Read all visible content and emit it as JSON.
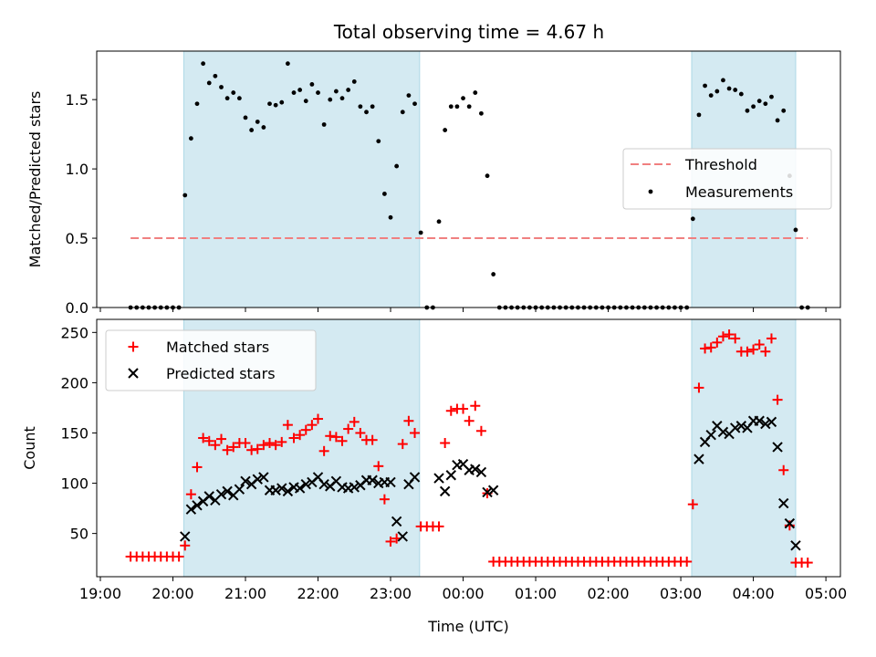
{
  "chart_data": {
    "title": "Total observing time = 4.67 h",
    "shared_x": {
      "label": "Time (UTC)",
      "ticks": [
        "19:00",
        "20:00",
        "21:00",
        "22:00",
        "23:00",
        "00:00",
        "01:00",
        "02:00",
        "03:00",
        "04:00",
        "05:00"
      ],
      "tick_hours": [
        19,
        20,
        21,
        22,
        23,
        24,
        25,
        26,
        27,
        28,
        29
      ],
      "xlim": [
        18.95,
        29.2
      ]
    },
    "shaded_spans": [
      {
        "start": "20:09",
        "end": "23:24"
      },
      {
        "start": "03:09",
        "end": "04:35"
      }
    ],
    "panels": [
      {
        "type": "scatter",
        "ylabel": "Matched/Predicted stars",
        "ylim": [
          0,
          1.85
        ],
        "yticks": [
          "0.0",
          "0.5",
          "1.0",
          "1.5"
        ],
        "ytick_values": [
          0,
          0.5,
          1.0,
          1.5
        ],
        "legend_position": "center-right",
        "threshold": {
          "name": "Threshold",
          "value": 0.5,
          "x_range": [
            "19:25",
            "04:45"
          ],
          "color": "#f08080"
        },
        "series": [
          {
            "name": "Measurements",
            "color": "#000000",
            "x": [
              "19:25",
              "19:30",
              "19:35",
              "19:40",
              "19:45",
              "19:50",
              "19:55",
              "20:00",
              "20:05",
              "20:10",
              "20:15",
              "20:20",
              "20:25",
              "20:30",
              "20:35",
              "20:40",
              "20:45",
              "20:50",
              "20:55",
              "21:00",
              "21:05",
              "21:10",
              "21:15",
              "21:20",
              "21:25",
              "21:30",
              "21:35",
              "21:40",
              "21:45",
              "21:50",
              "21:55",
              "22:00",
              "22:05",
              "22:10",
              "22:15",
              "22:20",
              "22:25",
              "22:30",
              "22:35",
              "22:40",
              "22:45",
              "22:50",
              "22:55",
              "23:00",
              "23:05",
              "23:10",
              "23:15",
              "23:20",
              "23:25",
              "23:30",
              "23:35",
              "23:40",
              "23:45",
              "23:50",
              "23:55",
              "00:00",
              "00:05",
              "00:10",
              "00:15",
              "00:20",
              "00:25",
              "00:30",
              "00:35",
              "00:40",
              "00:45",
              "00:50",
              "00:55",
              "01:00",
              "01:05",
              "01:10",
              "01:15",
              "01:20",
              "01:25",
              "01:30",
              "01:35",
              "01:40",
              "01:45",
              "01:50",
              "01:55",
              "02:00",
              "02:05",
              "02:10",
              "02:15",
              "02:20",
              "02:25",
              "02:30",
              "02:35",
              "02:40",
              "02:45",
              "02:50",
              "02:55",
              "03:00",
              "03:05",
              "03:10",
              "03:15",
              "03:20",
              "03:25",
              "03:30",
              "03:35",
              "03:40",
              "03:45",
              "03:50",
              "03:55",
              "04:00",
              "04:05",
              "04:10",
              "04:15",
              "04:20",
              "04:25",
              "04:30",
              "04:35",
              "04:40",
              "04:45"
            ],
            "values": [
              0,
              0,
              0,
              0,
              0,
              0,
              0,
              0,
              0,
              0.81,
              1.22,
              1.47,
              1.76,
              1.62,
              1.67,
              1.59,
              1.51,
              1.55,
              1.51,
              1.37,
              1.28,
              1.34,
              1.3,
              1.47,
              1.46,
              1.48,
              1.76,
              1.55,
              1.57,
              1.49,
              1.61,
              1.55,
              1.32,
              1.5,
              1.56,
              1.51,
              1.57,
              1.63,
              1.45,
              1.41,
              1.45,
              1.2,
              0.82,
              0.65,
              1.02,
              1.41,
              1.53,
              1.47,
              0.54,
              0,
              0,
              0.62,
              1.28,
              1.45,
              1.45,
              1.51,
              1.45,
              1.55,
              1.4,
              0.95,
              0.24,
              0,
              0,
              0,
              0,
              0,
              0,
              0,
              0,
              0,
              0,
              0,
              0,
              0,
              0,
              0,
              0,
              0,
              0,
              0,
              0,
              0,
              0,
              0,
              0,
              0,
              0,
              0,
              0,
              0,
              0,
              0,
              0,
              0.64,
              1.39,
              1.6,
              1.53,
              1.56,
              1.64,
              1.58,
              1.57,
              1.54,
              1.42,
              1.45,
              1.49,
              1.47,
              1.52,
              1.35,
              1.42,
              0.95,
              0.56,
              0,
              0
            ]
          }
        ]
      },
      {
        "type": "scatter",
        "ylabel": "Count",
        "ylim": [
          7,
          263
        ],
        "yticks": [
          "50",
          "100",
          "150",
          "200",
          "250"
        ],
        "ytick_values": [
          50,
          100,
          150,
          200,
          250
        ],
        "legend_position": "upper-left",
        "series": [
          {
            "name": "Matched stars",
            "marker": "+",
            "color": "#ff0000",
            "x": [
              "19:25",
              "19:30",
              "19:35",
              "19:40",
              "19:45",
              "19:50",
              "19:55",
              "20:00",
              "20:05",
              "20:10",
              "20:15",
              "20:20",
              "20:25",
              "20:30",
              "20:35",
              "20:40",
              "20:45",
              "20:50",
              "20:55",
              "21:00",
              "21:05",
              "21:10",
              "21:15",
              "21:20",
              "21:25",
              "21:30",
              "21:35",
              "21:40",
              "21:45",
              "21:50",
              "21:55",
              "22:00",
              "22:05",
              "22:10",
              "22:15",
              "22:20",
              "22:25",
              "22:30",
              "22:35",
              "22:40",
              "22:45",
              "22:50",
              "22:55",
              "23:00",
              "23:05",
              "23:10",
              "23:15",
              "23:20",
              "23:25",
              "23:30",
              "23:35",
              "23:40",
              "23:45",
              "23:50",
              "23:55",
              "00:00",
              "00:05",
              "00:10",
              "00:15",
              "00:20",
              "00:25",
              "00:30",
              "00:35",
              "00:40",
              "00:45",
              "00:50",
              "00:55",
              "01:00",
              "01:05",
              "01:10",
              "01:15",
              "01:20",
              "01:25",
              "01:30",
              "01:35",
              "01:40",
              "01:45",
              "01:50",
              "01:55",
              "02:00",
              "02:05",
              "02:10",
              "02:15",
              "02:20",
              "02:25",
              "02:30",
              "02:35",
              "02:40",
              "02:45",
              "02:50",
              "02:55",
              "03:00",
              "03:05",
              "03:10",
              "03:15",
              "03:20",
              "03:25",
              "03:30",
              "03:35",
              "03:40",
              "03:45",
              "03:50",
              "03:55",
              "04:00",
              "04:05",
              "04:10",
              "04:15",
              "04:20",
              "04:25",
              "04:30",
              "04:35",
              "04:40",
              "04:45"
            ],
            "values": [
              27,
              27,
              27,
              27,
              27,
              27,
              27,
              27,
              27,
              38,
              89,
              116,
              145,
              142,
              138,
              144,
              133,
              136,
              140,
              140,
              133,
              134,
              138,
              140,
              138,
              141,
              158,
              145,
              148,
              153,
              158,
              164,
              132,
              147,
              146,
              142,
              154,
              161,
              150,
              143,
              143,
              117,
              84,
              42,
              45,
              139,
              162,
              150,
              57,
              57,
              57,
              57,
              140,
              172,
              174,
              174,
              162,
              177,
              152,
              90,
              22,
              22,
              22,
              22,
              22,
              22,
              22,
              22,
              22,
              22,
              22,
              22,
              22,
              22,
              22,
              22,
              22,
              22,
              22,
              22,
              22,
              22,
              22,
              22,
              22,
              22,
              22,
              22,
              22,
              22,
              22,
              22,
              22,
              79,
              195,
              234,
              235,
              240,
              246,
              248,
              244,
              231,
              231,
              233,
              238,
              231,
              244,
              183,
              113,
              58,
              21,
              21,
              21
            ]
          },
          {
            "name": "Predicted stars",
            "marker": "x",
            "color": "#000000",
            "x": [
              "20:10",
              "20:15",
              "20:20",
              "20:25",
              "20:30",
              "20:35",
              "20:40",
              "20:45",
              "20:50",
              "20:55",
              "21:00",
              "21:05",
              "21:10",
              "21:15",
              "21:20",
              "21:25",
              "21:30",
              "21:35",
              "21:40",
              "21:45",
              "21:50",
              "21:55",
              "22:00",
              "22:05",
              "22:10",
              "22:15",
              "22:20",
              "22:25",
              "22:30",
              "22:35",
              "22:40",
              "22:45",
              "22:50",
              "22:55",
              "23:00",
              "23:05",
              "23:10",
              "23:15",
              "23:20",
              "23:40",
              "23:45",
              "23:50",
              "23:55",
              "00:00",
              "00:05",
              "00:10",
              "00:15",
              "00:20",
              "00:25",
              "03:15",
              "03:20",
              "03:25",
              "03:30",
              "03:35",
              "03:40",
              "03:45",
              "03:50",
              "03:55",
              "04:00",
              "04:05",
              "04:10",
              "04:15",
              "04:20",
              "04:25",
              "04:30",
              "04:35"
            ],
            "values": [
              47,
              74,
              78,
              82,
              87,
              83,
              89,
              92,
              88,
              94,
              102,
              99,
              104,
              106,
              93,
              93,
              95,
              92,
              96,
              95,
              99,
              101,
              106,
              99,
              97,
              102,
              96,
              95,
              96,
              98,
              103,
              103,
              100,
              101,
              101,
              62,
              47,
              99,
              106,
              105,
              92,
              108,
              118,
              119,
              113,
              114,
              111,
              91,
              93,
              124,
              141,
              148,
              157,
              151,
              149,
              155,
              157,
              155,
              162,
              162,
              159,
              161,
              136,
              80,
              60,
              38
            ]
          }
        ]
      }
    ]
  }
}
